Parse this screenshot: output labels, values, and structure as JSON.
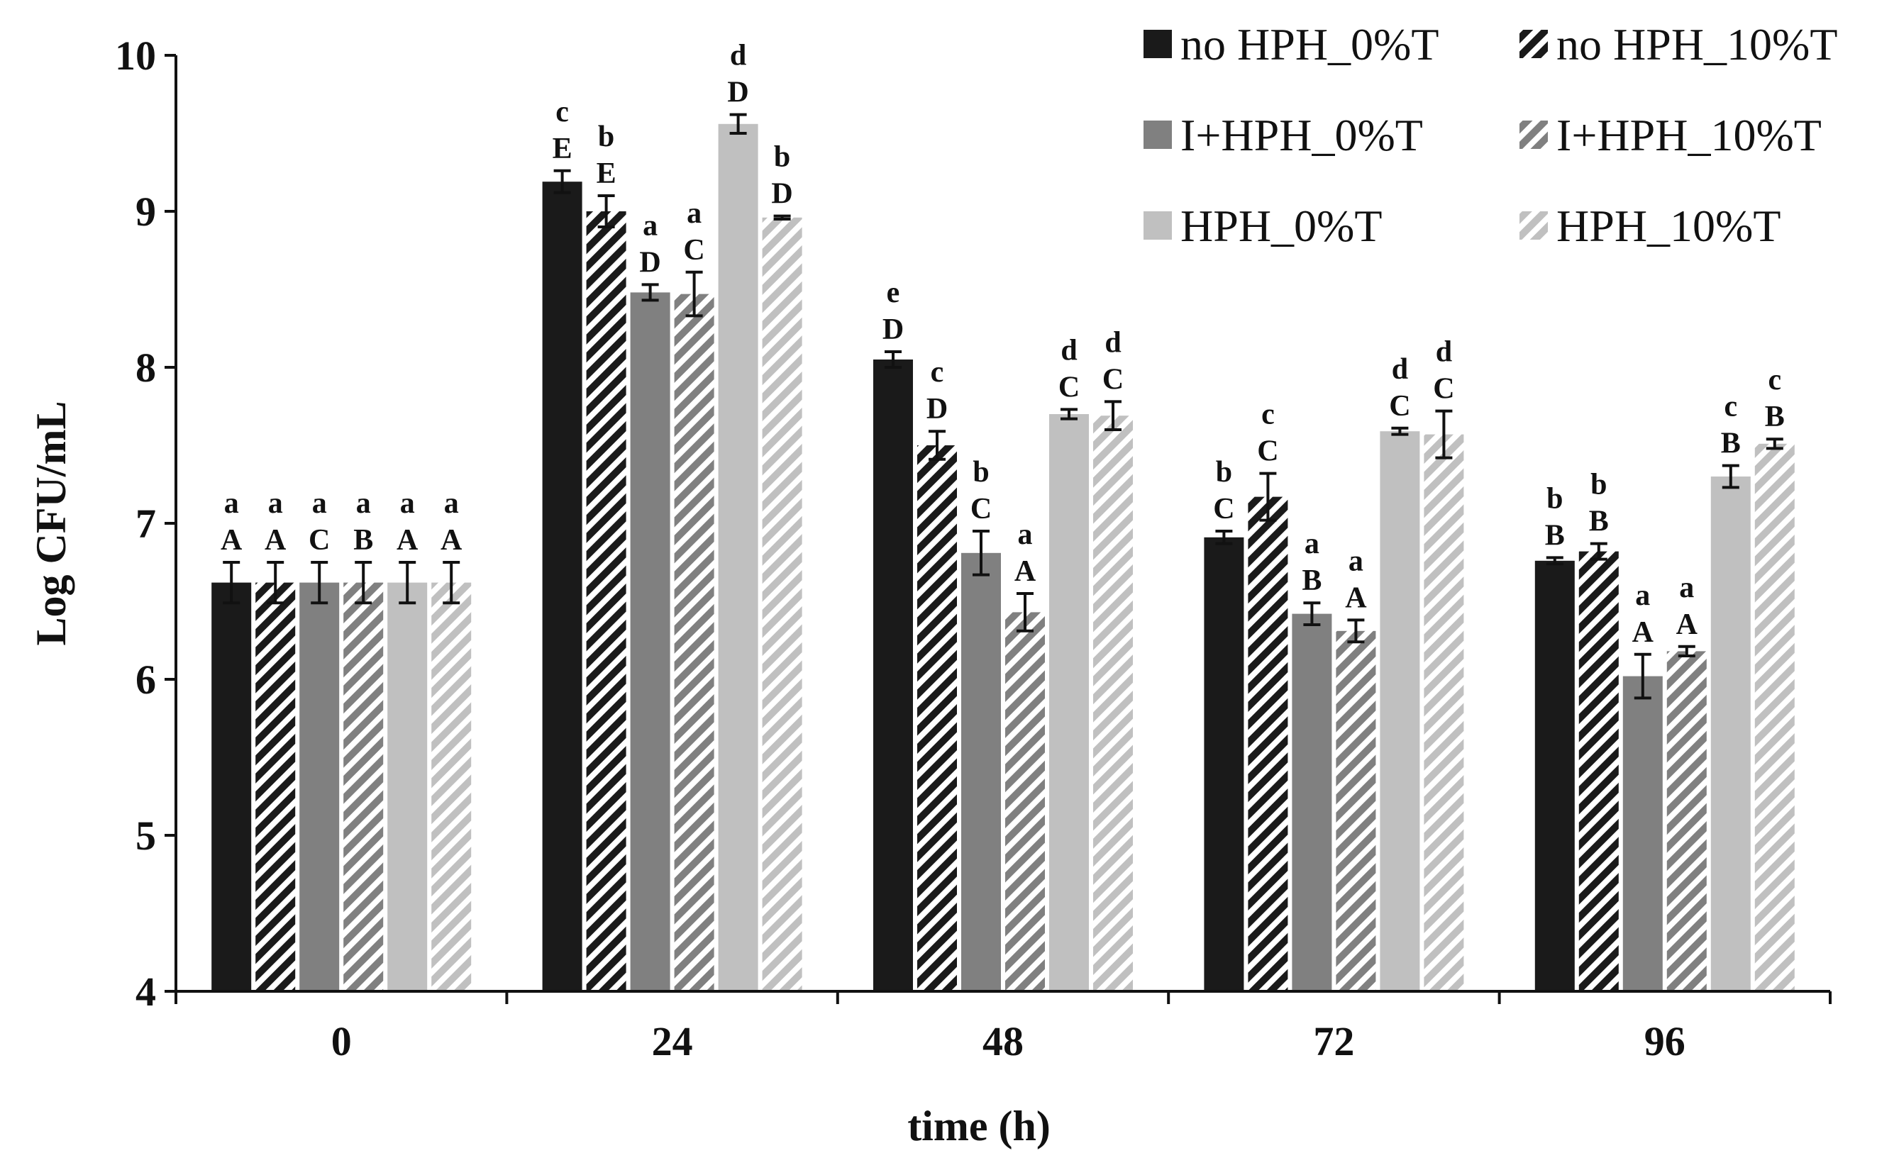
{
  "chart_data": {
    "type": "bar",
    "title": "",
    "xlabel": "time (h)",
    "ylabel": "Log CFU/mL",
    "ylim": [
      4,
      10
    ],
    "yticks": [
      "4",
      "5",
      "6",
      "7",
      "8",
      "9",
      "10"
    ],
    "categories": [
      "0",
      "24",
      "48",
      "72",
      "96"
    ],
    "grid": false,
    "legend_position": "top-right",
    "series": [
      {
        "name": "no HPH_0%T",
        "pattern": "solid",
        "color": "#1a1a1a",
        "values": [
          6.62,
          9.19,
          8.05,
          6.91,
          6.76
        ],
        "errors": [
          0.13,
          0.07,
          0.05,
          0.04,
          0.02
        ],
        "lower_letters": [
          "A",
          "E",
          "D",
          "C",
          "B"
        ],
        "upper_letters": [
          "a",
          "c",
          "e",
          "b",
          "b"
        ]
      },
      {
        "name": "no HPH_10%T",
        "pattern": "hatch",
        "color": "#1a1a1a",
        "values": [
          6.62,
          9.0,
          7.5,
          7.17,
          6.82
        ],
        "errors": [
          0.13,
          0.1,
          0.09,
          0.15,
          0.05
        ],
        "lower_letters": [
          "A",
          "E",
          "D",
          "C",
          "B"
        ],
        "upper_letters": [
          "a",
          "b",
          "c",
          "c",
          "b"
        ]
      },
      {
        "name": "I+HPH_0%T",
        "pattern": "solid",
        "color": "#808080",
        "values": [
          6.62,
          8.48,
          6.81,
          6.42,
          6.02
        ],
        "errors": [
          0.13,
          0.05,
          0.14,
          0.07,
          0.14
        ],
        "lower_letters": [
          "C",
          "D",
          "C",
          "B",
          "A"
        ],
        "upper_letters": [
          "a",
          "a",
          "b",
          "a",
          "a"
        ]
      },
      {
        "name": "I+HPH_10%T",
        "pattern": "hatch",
        "color": "#808080",
        "values": [
          6.62,
          8.47,
          6.43,
          6.31,
          6.18
        ],
        "errors": [
          0.13,
          0.14,
          0.12,
          0.07,
          0.03
        ],
        "lower_letters": [
          "B",
          "C",
          "A",
          "A",
          "A"
        ],
        "upper_letters": [
          "a",
          "a",
          "a",
          "a",
          "a"
        ]
      },
      {
        "name": "HPH_0%T",
        "pattern": "solid",
        "color": "#c0c0c0",
        "values": [
          6.62,
          9.56,
          7.7,
          7.59,
          7.3
        ],
        "errors": [
          0.13,
          0.06,
          0.03,
          0.02,
          0.07
        ],
        "lower_letters": [
          "A",
          "D",
          "C",
          "C",
          "B"
        ],
        "upper_letters": [
          "a",
          "d",
          "d",
          "d",
          "c"
        ]
      },
      {
        "name": "HPH_10%T",
        "pattern": "hatch",
        "color": "#c0c0c0",
        "values": [
          6.62,
          8.96,
          7.69,
          7.57,
          7.51
        ],
        "errors": [
          0.13,
          0.01,
          0.09,
          0.15,
          0.03
        ],
        "lower_letters": [
          "A",
          "D",
          "C",
          "C",
          "B"
        ],
        "upper_letters": [
          "a",
          "b",
          "d",
          "d",
          "c"
        ]
      }
    ]
  }
}
